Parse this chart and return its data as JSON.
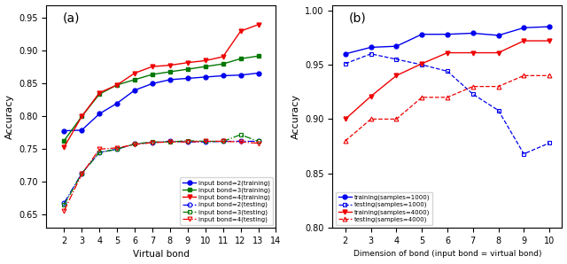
{
  "panel_a": {
    "x": [
      2,
      3,
      4,
      5,
      6,
      7,
      8,
      9,
      10,
      11,
      12,
      13
    ],
    "bond2_train": [
      0.778,
      0.779,
      0.804,
      0.82,
      0.84,
      0.85,
      0.856,
      0.858,
      0.86,
      0.862,
      0.863,
      0.866
    ],
    "bond3_train": [
      0.763,
      0.8,
      0.834,
      0.848,
      0.856,
      0.864,
      0.868,
      0.872,
      0.876,
      0.88,
      0.888,
      0.892
    ],
    "bond4_train": [
      0.753,
      0.8,
      0.836,
      0.848,
      0.866,
      0.876,
      0.878,
      0.882,
      0.885,
      0.891,
      0.93,
      0.94
    ],
    "bond2_test": [
      0.668,
      0.713,
      0.745,
      0.75,
      0.758,
      0.76,
      0.762,
      0.761,
      0.761,
      0.762,
      0.762,
      0.762
    ],
    "bond3_test": [
      0.665,
      0.713,
      0.745,
      0.75,
      0.758,
      0.761,
      0.761,
      0.763,
      0.762,
      0.762,
      0.772,
      0.762
    ],
    "bond4_test": [
      0.656,
      0.712,
      0.75,
      0.752,
      0.757,
      0.76,
      0.761,
      0.761,
      0.762,
      0.762,
      0.761,
      0.759
    ],
    "xlabel": "Virtual bond",
    "ylabel": "Accuracy",
    "xlim": [
      1,
      14
    ],
    "ylim": [
      0.63,
      0.97
    ],
    "yticks": [
      0.65,
      0.7,
      0.75,
      0.8,
      0.85,
      0.9,
      0.95
    ],
    "xticks": [
      2,
      3,
      4,
      5,
      6,
      7,
      8,
      9,
      10,
      11,
      12,
      13,
      14
    ],
    "label": "(a)"
  },
  "panel_b": {
    "x": [
      2,
      3,
      4,
      5,
      6,
      7,
      8,
      9,
      10
    ],
    "s1000_train": [
      0.96,
      0.966,
      0.967,
      0.978,
      0.978,
      0.979,
      0.977,
      0.984,
      0.985
    ],
    "s1000_test": [
      0.951,
      0.96,
      0.955,
      0.95,
      0.944,
      0.923,
      0.908,
      0.868,
      0.878
    ],
    "s4000_train": [
      0.9,
      0.921,
      0.94,
      0.951,
      0.961,
      0.961,
      0.961,
      0.972,
      0.972
    ],
    "s4000_test": [
      0.88,
      0.9,
      0.9,
      0.92,
      0.92,
      0.93,
      0.93,
      0.94,
      0.94
    ],
    "xlabel": "Dimension of bond (input bond = virtual bond)",
    "ylabel": "Accuracy",
    "xlim": [
      1.5,
      10.5
    ],
    "ylim": [
      0.8,
      1.005
    ],
    "yticks": [
      0.8,
      0.85,
      0.9,
      0.95,
      1.0
    ],
    "xticks": [
      2,
      3,
      4,
      5,
      6,
      7,
      8,
      9,
      10
    ],
    "label": "(b)"
  },
  "colors": {
    "blue": "#0000EE",
    "green": "#007700",
    "red": "#EE0000"
  },
  "bg_color": "#F0F0F0"
}
